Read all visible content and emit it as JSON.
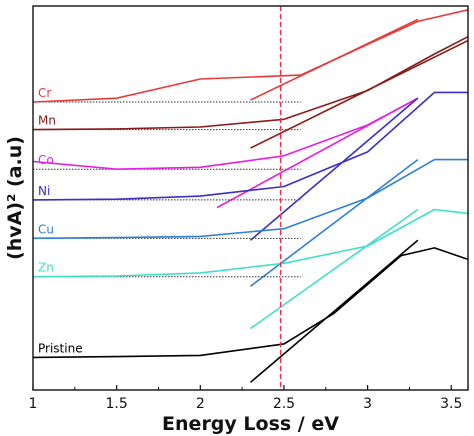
{
  "chart_data": {
    "type": "line",
    "title": "",
    "xlabel": "Energy Loss / eV",
    "ylabel": "(hvA)² (a.u)",
    "xlim": [
      1,
      3.6
    ],
    "ylim": [
      0,
      10
    ],
    "xticks": [
      1,
      1.5,
      2,
      2.5,
      3,
      3.5
    ],
    "xtick_labels": [
      "1",
      "1.5",
      "2",
      "2.5",
      "3",
      "3.5"
    ],
    "grid": false,
    "legend": "inline labels at left",
    "reference_line": {
      "x": 2.48,
      "color": "#e8304a",
      "style": "dashed"
    },
    "series": [
      {
        "name": "Cr",
        "color": "#e83a3a",
        "x": [
          1.0,
          1.5,
          2.0,
          2.6,
          3.0,
          3.3,
          3.6
        ],
        "y": [
          7.5,
          7.6,
          8.1,
          8.2,
          9.0,
          9.6,
          9.9
        ],
        "baseline": {
          "from": 1.0,
          "to": 2.6,
          "y": 7.5
        },
        "tangent": {
          "x": [
            2.3,
            3.3
          ],
          "y": [
            7.55,
            9.65
          ]
        }
      },
      {
        "name": "Mn",
        "color": "#8b1a1a",
        "x": [
          1.0,
          1.5,
          2.0,
          2.5,
          3.0,
          3.4,
          3.6
        ],
        "y": [
          6.78,
          6.8,
          6.85,
          7.05,
          7.8,
          8.75,
          9.2
        ],
        "baseline": {
          "from": 1.0,
          "to": 2.6,
          "y": 6.78
        },
        "tangent": {
          "x": [
            2.3,
            3.6
          ],
          "y": [
            6.3,
            9.1
          ]
        }
      },
      {
        "name": "Co",
        "color": "#e81ee3",
        "x": [
          1.0,
          1.5,
          2.0,
          2.5,
          3.0,
          3.3
        ],
        "y": [
          5.95,
          5.75,
          5.8,
          6.1,
          6.9,
          7.6
        ],
        "baseline": {
          "from": 1.0,
          "to": 2.6,
          "y": 5.75
        },
        "tangent": {
          "x": [
            2.1,
            3.3
          ],
          "y": [
            4.75,
            7.6
          ]
        }
      },
      {
        "name": "Ni",
        "color": "#3a2fc8",
        "x": [
          1.0,
          1.5,
          2.0,
          2.5,
          3.0,
          3.4,
          3.6
        ],
        "y": [
          4.95,
          4.97,
          5.05,
          5.3,
          6.2,
          7.75,
          7.75
        ],
        "baseline": {
          "from": 1.0,
          "to": 2.6,
          "y": 4.95
        },
        "tangent": {
          "x": [
            2.3,
            3.3
          ],
          "y": [
            3.9,
            7.6
          ]
        }
      },
      {
        "name": "Cu",
        "color": "#2f7fd6",
        "x": [
          1.0,
          1.5,
          2.0,
          2.5,
          3.0,
          3.4,
          3.6
        ],
        "y": [
          3.95,
          3.97,
          4.0,
          4.2,
          5.0,
          6.0,
          6.0
        ],
        "baseline": {
          "from": 1.0,
          "to": 2.6,
          "y": 3.95
        },
        "tangent": {
          "x": [
            2.3,
            3.3
          ],
          "y": [
            2.7,
            6.0
          ]
        }
      },
      {
        "name": "Zn",
        "color": "#3fe0c8",
        "x": [
          1.0,
          1.5,
          2.0,
          2.5,
          3.0,
          3.4,
          3.6
        ],
        "y": [
          2.95,
          2.97,
          3.05,
          3.3,
          3.75,
          4.7,
          4.6
        ],
        "baseline": {
          "from": 1.0,
          "to": 2.6,
          "y": 2.95
        },
        "tangent": {
          "x": [
            2.3,
            3.3
          ],
          "y": [
            1.6,
            4.7
          ]
        }
      },
      {
        "name": "Pristine",
        "color": "#000000",
        "x": [
          1.0,
          1.5,
          2.0,
          2.5,
          2.8,
          3.2,
          3.4,
          3.6
        ],
        "y": [
          0.85,
          0.87,
          0.9,
          1.2,
          2.0,
          3.5,
          3.7,
          3.4
        ],
        "baseline": null,
        "tangent": {
          "x": [
            2.3,
            3.3
          ],
          "y": [
            0.2,
            3.9
          ]
        }
      }
    ]
  }
}
